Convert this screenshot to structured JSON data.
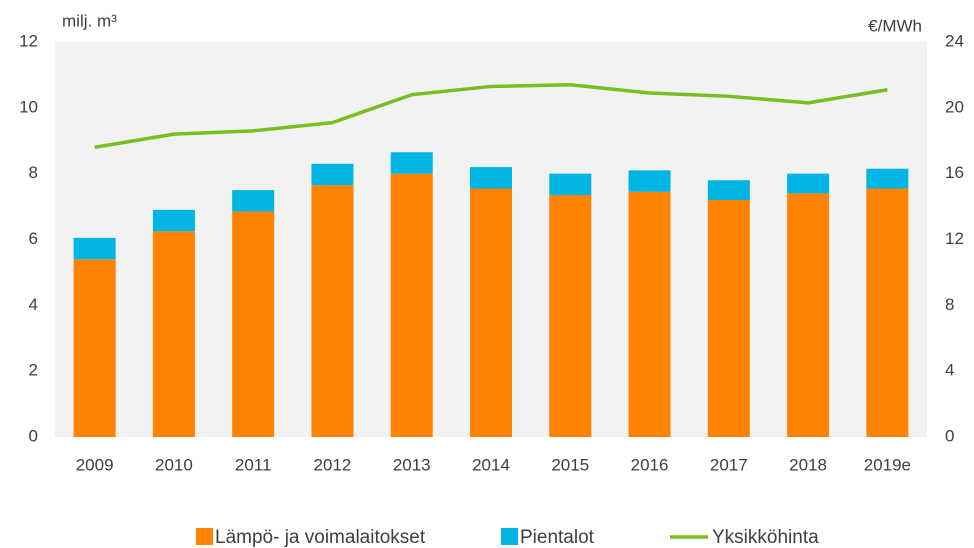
{
  "chart_data": {
    "type": "bar",
    "y_label": "milj. m³",
    "y2_label": "€/MWh",
    "categories": [
      "2009",
      "2010",
      "2011",
      "2012",
      "2013",
      "2014",
      "2015",
      "2016",
      "2017",
      "2018",
      "2019e"
    ],
    "stacked": true,
    "series": [
      {
        "name": "Lämpö- ja voimalaitokset",
        "color": "#ff8200",
        "type": "bar",
        "values": [
          5.4,
          6.25,
          6.85,
          7.65,
          8.0,
          7.55,
          7.35,
          7.45,
          7.2,
          7.4,
          7.55
        ]
      },
      {
        "name": "Pientalot",
        "color": "#00b4e4",
        "type": "bar",
        "values": [
          0.65,
          0.65,
          0.65,
          0.65,
          0.65,
          0.65,
          0.65,
          0.65,
          0.6,
          0.6,
          0.6
        ]
      },
      {
        "name": "Yksikköhinta",
        "color": "#78be20",
        "type": "line",
        "axis": "y2",
        "values": [
          17.6,
          18.4,
          18.6,
          19.1,
          20.8,
          21.3,
          21.4,
          20.9,
          20.7,
          20.3,
          21.1
        ]
      }
    ],
    "ylim": [
      0,
      12
    ],
    "yticks": [
      0,
      2,
      4,
      6,
      8,
      10,
      12
    ],
    "y2lim": [
      0,
      24
    ],
    "y2ticks": [
      0,
      4,
      8,
      12,
      16,
      20,
      24
    ],
    "legend": "bottom"
  }
}
